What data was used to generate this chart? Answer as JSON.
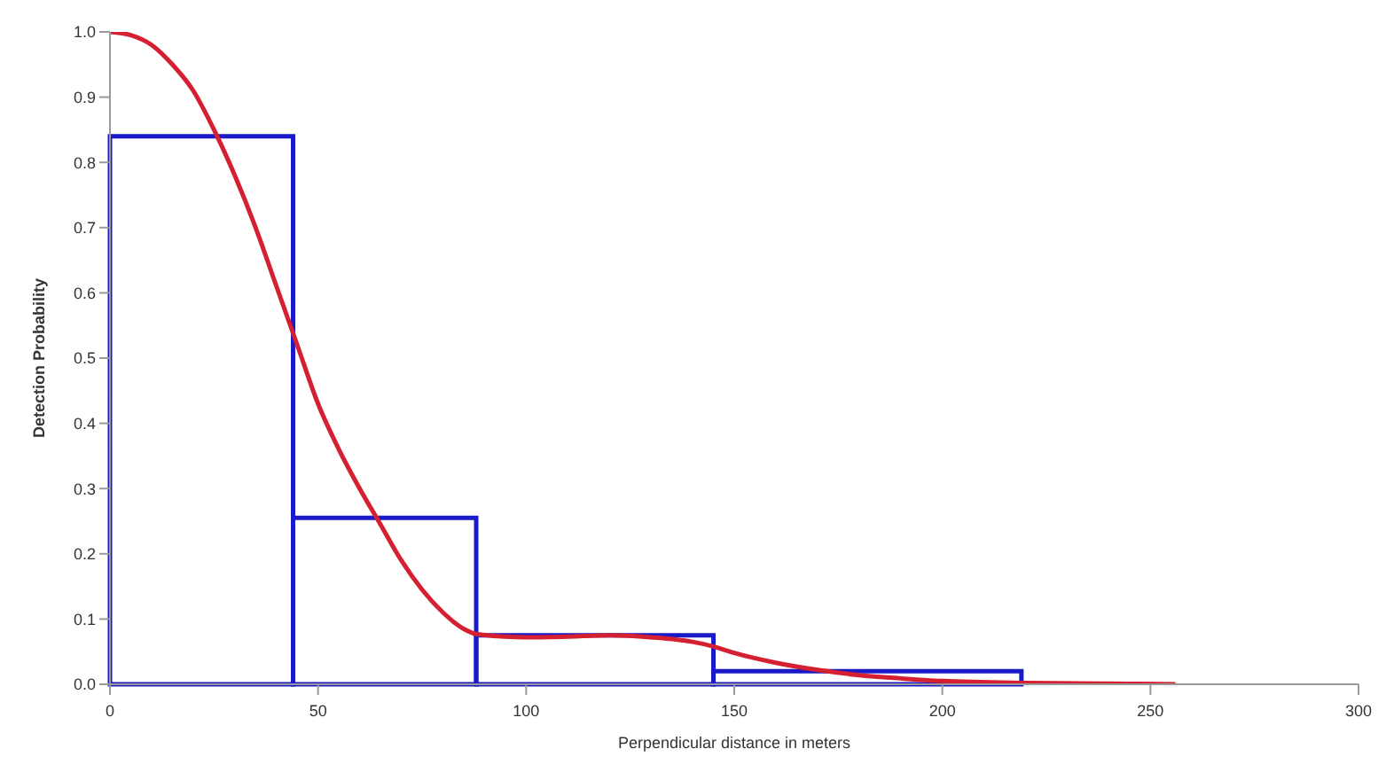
{
  "chart_data": {
    "type": "histogram",
    "xlabel": "Perpendicular distance in meters",
    "ylabel": "Detection Probability",
    "bins": [
      0,
      44,
      88,
      145,
      219
    ],
    "values": [
      0.84,
      0.255,
      0.075,
      0.02
    ],
    "color": "#1a1ac8",
    "series": [
      {
        "type": "line",
        "color": "#d42030",
        "x": [
          0,
          5,
          10,
          15,
          20,
          25,
          30,
          35,
          40,
          45,
          50,
          55,
          60,
          65,
          70,
          75,
          80,
          85,
          88,
          95,
          100,
          110,
          120,
          130,
          140,
          145,
          150,
          160,
          170,
          180,
          190,
          200,
          220,
          240,
          256
        ],
        "values": [
          1.0,
          0.995,
          0.98,
          0.95,
          0.91,
          0.85,
          0.78,
          0.7,
          0.61,
          0.52,
          0.43,
          0.36,
          0.3,
          0.245,
          0.19,
          0.145,
          0.11,
          0.085,
          0.077,
          0.073,
          0.072,
          0.073,
          0.075,
          0.072,
          0.065,
          0.058,
          0.048,
          0.033,
          0.022,
          0.014,
          0.009,
          0.005,
          0.002,
          0.001,
          0.0
        ]
      }
    ],
    "xlim": [
      0,
      300
    ],
    "xticks": [
      0,
      50,
      100,
      150,
      200,
      250,
      300
    ],
    "ylim": [
      0,
      1
    ],
    "yticks": [
      {
        "value": 0,
        "label": "0.0"
      },
      {
        "value": 0.1,
        "label": "0.1"
      },
      {
        "value": 0.2,
        "label": "0.2"
      },
      {
        "value": 0.3,
        "label": "0.3"
      },
      {
        "value": 0.4,
        "label": "0.4"
      },
      {
        "value": 0.5,
        "label": "0.5"
      },
      {
        "value": 0.6,
        "label": "0.6"
      },
      {
        "value": 0.7,
        "label": "0.7"
      },
      {
        "value": 0.8,
        "label": "0.8"
      },
      {
        "value": 0.9,
        "label": "0.9"
      },
      {
        "value": 1,
        "label": "1.0"
      }
    ]
  }
}
